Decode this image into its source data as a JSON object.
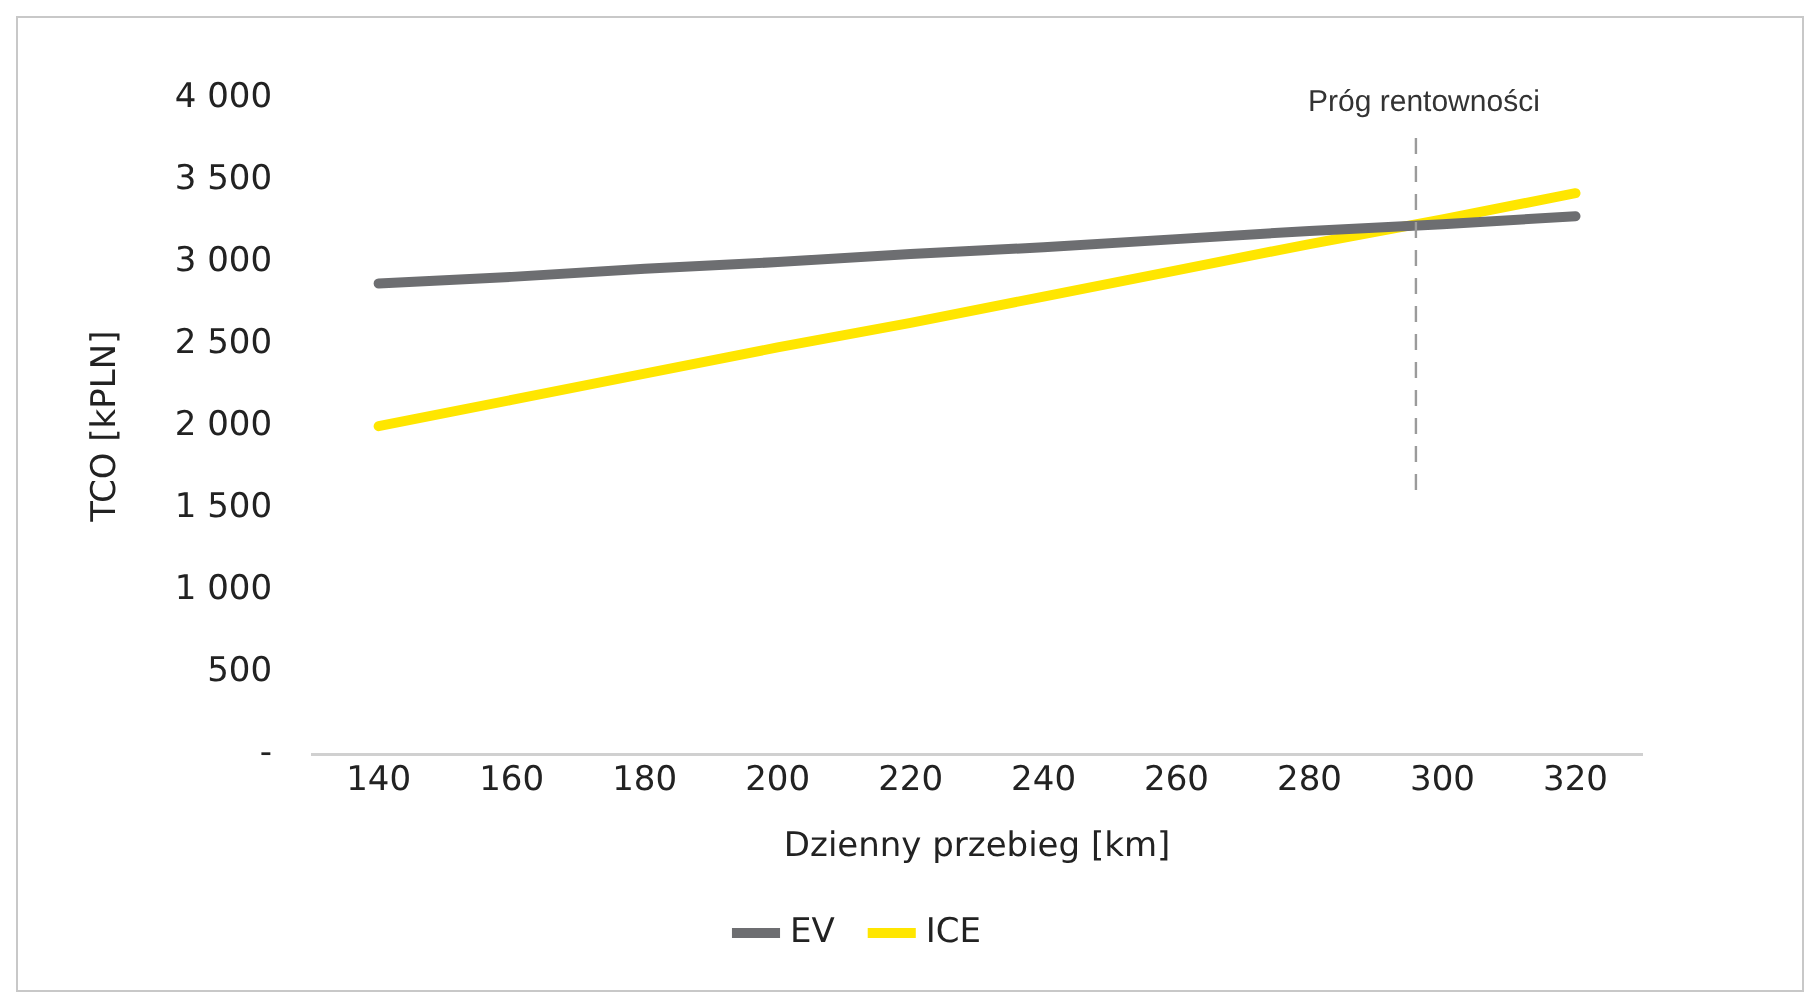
{
  "chart_data": {
    "type": "line",
    "xlabel": "Dzienny przebieg [km]",
    "ylabel": "TCO [kPLN]",
    "x": [
      140,
      160,
      180,
      200,
      220,
      240,
      260,
      280,
      300,
      320
    ],
    "series": [
      {
        "name": "EV",
        "color": "#6d6e71",
        "values": [
          2870,
          2910,
          2960,
          3000,
          3050,
          3090,
          3140,
          3190,
          3230,
          3280
        ]
      },
      {
        "name": "ICE",
        "color": "#ffe600",
        "values": [
          2000,
          2160,
          2320,
          2480,
          2630,
          2790,
          2950,
          3110,
          3260,
          3420
        ]
      }
    ],
    "xlim": [
      130,
      330
    ],
    "xticks": [
      140,
      160,
      180,
      200,
      220,
      240,
      260,
      280,
      300,
      320
    ],
    "ylim": [
      0,
      4000
    ],
    "yticks": [
      {
        "value": 0,
        "label": "-"
      },
      {
        "value": 500,
        "label": "500"
      },
      {
        "value": 1000,
        "label": "1 000"
      },
      {
        "value": 1500,
        "label": "1 500"
      },
      {
        "value": 2000,
        "label": "2 000"
      },
      {
        "value": 2500,
        "label": "2 500"
      },
      {
        "value": 3000,
        "label": "3 000"
      },
      {
        "value": 3500,
        "label": "3 500"
      },
      {
        "value": 4000,
        "label": "4 000"
      }
    ],
    "ref_lines": [
      {
        "axis": "x",
        "value": 296,
        "label": "Próg rentowności",
        "color": "#9b9b9b",
        "line_style": "dashed"
      }
    ],
    "grid": false,
    "legend": "bottom",
    "marker": "none",
    "line_style": "solid"
  }
}
